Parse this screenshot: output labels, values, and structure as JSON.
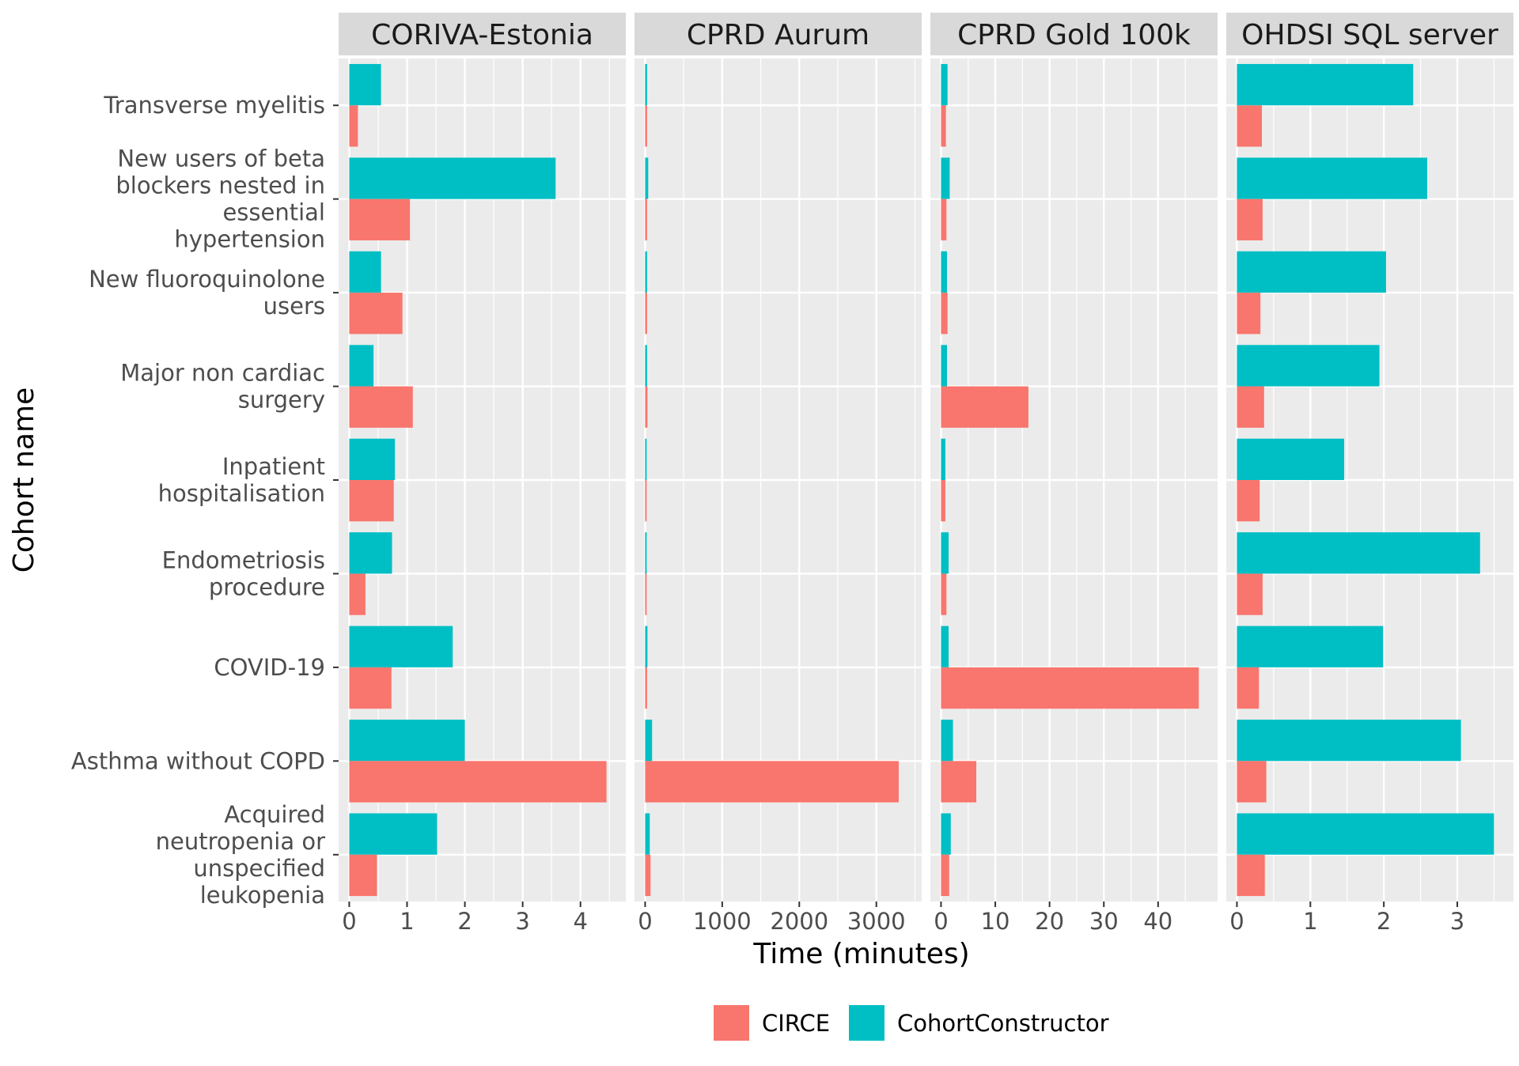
{
  "chart_data": {
    "type": "bar",
    "orientation": "horizontal",
    "xlabel": "Time (minutes)",
    "ylabel": "Cohort name",
    "categories": [
      "Transverse myelitis",
      "New users of beta blockers nested in essential hypertension",
      "New fluoroquinolone users",
      "Major non cardiac surgery",
      "Inpatient hospitalisation",
      "Endometriosis procedure",
      "COVID-19",
      "Asthma without COPD",
      "Acquired neutropenia or unspecified leukopenia"
    ],
    "category_label_lines": [
      [
        "Transverse myelitis"
      ],
      [
        "New users of beta",
        "blockers nested in",
        "essential",
        "hypertension"
      ],
      [
        "New fluoroquinolone",
        "users"
      ],
      [
        "Major non cardiac",
        "surgery"
      ],
      [
        "Inpatient",
        "hospitalisation"
      ],
      [
        "Endometriosis",
        "procedure"
      ],
      [
        "COVID-19"
      ],
      [
        "Asthma without COPD"
      ],
      [
        "Acquired",
        "neutropenia or",
        "unspecified",
        "leukopenia"
      ]
    ],
    "legend": {
      "position": "bottom",
      "items": [
        {
          "name": "CIRCE",
          "color": "#F8766D"
        },
        {
          "name": "CohortConstructor",
          "color": "#00BFC4"
        }
      ]
    },
    "grid": true,
    "panels": [
      {
        "title": "CORIVA-Estonia",
        "xlim": [
          0,
          4.6
        ],
        "xticks": [
          0,
          1,
          2,
          3,
          4
        ],
        "series": [
          {
            "name": "CIRCE",
            "values": [
              0.15,
              1.05,
              0.92,
              1.1,
              0.77,
              0.28,
              0.73,
              4.45,
              0.48
            ]
          },
          {
            "name": "CohortConstructor",
            "values": [
              0.55,
              3.57,
              0.55,
              0.42,
              0.79,
              0.74,
              1.79,
              2.0,
              1.52
            ]
          }
        ]
      },
      {
        "title": "CPRD Aurum",
        "xlim": [
          0,
          3450
        ],
        "xticks": [
          0,
          1000,
          2000,
          3000
        ],
        "series": [
          {
            "name": "CIRCE",
            "values": [
              25,
              25,
              25,
              30,
              20,
              20,
              25,
              3290,
              70
            ]
          },
          {
            "name": "CohortConstructor",
            "values": [
              25,
              40,
              25,
              25,
              20,
              20,
              30,
              90,
              60
            ]
          }
        ]
      },
      {
        "title": "CPRD Gold 100k",
        "xlim": [
          0,
          49
        ],
        "xticks": [
          0,
          10,
          20,
          30,
          40
        ],
        "series": [
          {
            "name": "CIRCE",
            "values": [
              0.9,
              1.0,
              1.2,
              16.1,
              0.8,
              1.0,
              47.5,
              6.5,
              1.5
            ]
          },
          {
            "name": "CohortConstructor",
            "values": [
              1.2,
              1.6,
              1.1,
              1.1,
              0.8,
              1.4,
              1.4,
              2.2,
              1.8
            ]
          }
        ]
      },
      {
        "title": "OHDSI SQL server",
        "xlim": [
          0,
          3.62
        ],
        "xticks": [
          0,
          1,
          2,
          3
        ],
        "series": [
          {
            "name": "CIRCE",
            "values": [
              0.34,
              0.35,
              0.32,
              0.37,
              0.31,
              0.35,
              0.3,
              0.4,
              0.38
            ]
          },
          {
            "name": "CohortConstructor",
            "values": [
              2.4,
              2.59,
              2.03,
              1.94,
              1.46,
              3.31,
              1.99,
              3.05,
              3.5
            ]
          }
        ]
      }
    ]
  }
}
